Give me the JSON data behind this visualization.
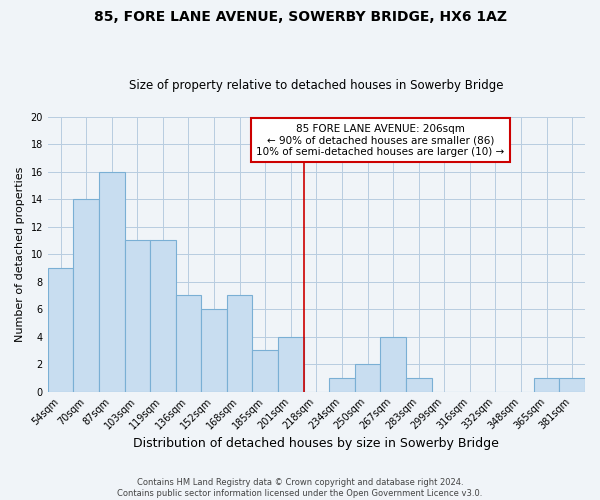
{
  "title": "85, FORE LANE AVENUE, SOWERBY BRIDGE, HX6 1AZ",
  "subtitle": "Size of property relative to detached houses in Sowerby Bridge",
  "xlabel": "Distribution of detached houses by size in Sowerby Bridge",
  "ylabel": "Number of detached properties",
  "categories": [
    "54sqm",
    "70sqm",
    "87sqm",
    "103sqm",
    "119sqm",
    "136sqm",
    "152sqm",
    "168sqm",
    "185sqm",
    "201sqm",
    "218sqm",
    "234sqm",
    "250sqm",
    "267sqm",
    "283sqm",
    "299sqm",
    "316sqm",
    "332sqm",
    "348sqm",
    "365sqm",
    "381sqm"
  ],
  "values": [
    9,
    14,
    16,
    11,
    11,
    7,
    6,
    7,
    3,
    4,
    0,
    1,
    2,
    4,
    1,
    0,
    0,
    0,
    0,
    1,
    1
  ],
  "bar_fill_color": "#c8ddf0",
  "bar_edge_color": "#7aafd4",
  "ylim": [
    0,
    20
  ],
  "yticks": [
    0,
    2,
    4,
    6,
    8,
    10,
    12,
    14,
    16,
    18,
    20
  ],
  "property_line_x": 9.5,
  "property_line_color": "#cc0000",
  "annotation_text": "85 FORE LANE AVENUE: 206sqm\n← 90% of detached houses are smaller (86)\n10% of semi-detached houses are larger (10) →",
  "annotation_box_edge_color": "#cc0000",
  "annotation_box_face_color": "#ffffff",
  "footer_line1": "Contains HM Land Registry data © Crown copyright and database right 2024.",
  "footer_line2": "Contains public sector information licensed under the Open Government Licence v3.0.",
  "bg_color": "#f0f4f8",
  "grid_color": "#b8cce0",
  "title_fontsize": 10,
  "subtitle_fontsize": 8.5,
  "xlabel_fontsize": 9,
  "ylabel_fontsize": 8,
  "tick_fontsize": 7,
  "annotation_fontsize": 7.5
}
